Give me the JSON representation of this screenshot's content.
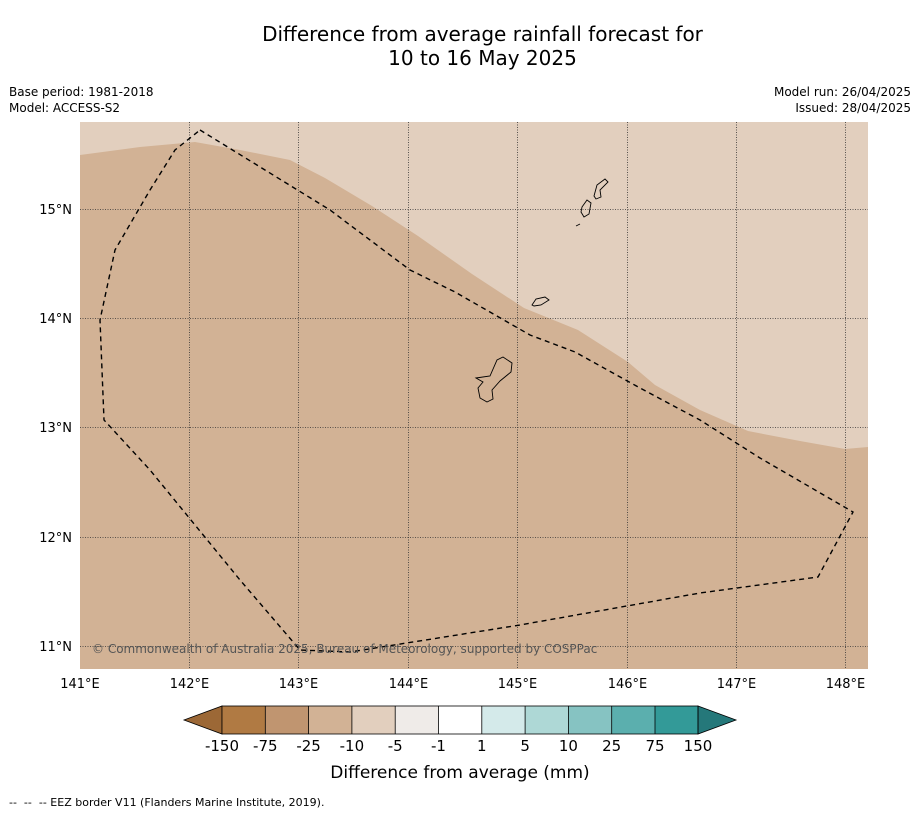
{
  "title": {
    "line1": "Difference from average rainfall forecast for",
    "line2": "10 to 16 May 2025"
  },
  "meta": {
    "base_period": "Base period: 1981-2018",
    "model": "Model: ACCESS-S2",
    "model_run": "Model run: 26/04/2025",
    "issued": "Issued: 28/04/2025"
  },
  "map": {
    "lon_labels": [
      "141°E",
      "142°E",
      "143°E",
      "144°E",
      "145°E",
      "146°E",
      "147°E",
      "148°E"
    ],
    "lat_labels": [
      "15°N",
      "14°N",
      "13°N",
      "12°N",
      "11°N"
    ],
    "copyright": "© Commonwealth of Australia 2025, Bureau of Meteorology, supported by COSPPac",
    "colors": {
      "minus_10_to_minus_25": "#d2b295",
      "minus_5_to_minus_10": "#e2cfbe"
    }
  },
  "colorbar": {
    "title": "Difference from average (mm)",
    "labels": [
      "-150",
      "-75",
      "-25",
      "-10",
      "-5",
      "-1",
      "1",
      "5",
      "10",
      "25",
      "75",
      "150"
    ],
    "colors": [
      "#9c6836",
      "#b07a43",
      "#c09570",
      "#d2b295",
      "#e2cfbe",
      "#efebe8",
      "#ffffff",
      "#d4eaea",
      "#aed8d6",
      "#86c3c2",
      "#5bafae",
      "#339a98",
      "#25787a"
    ]
  },
  "footnote": "--  --  -- EEZ border V11 (Flanders Marine Institute, 2019)."
}
